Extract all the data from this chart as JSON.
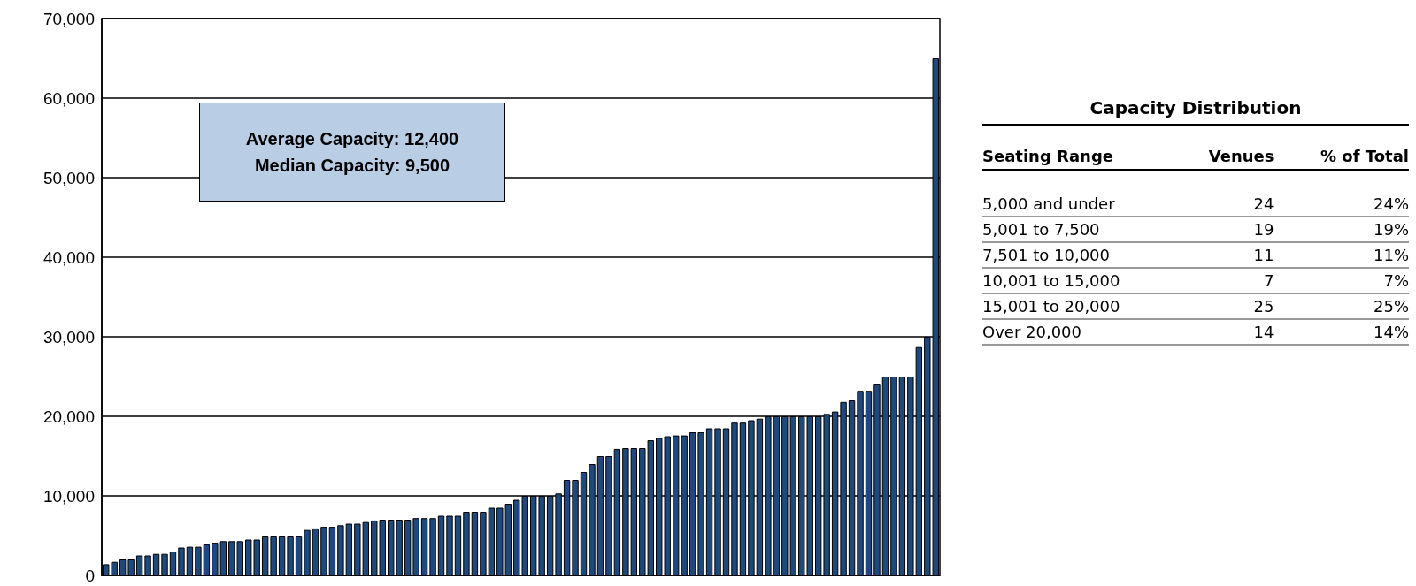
{
  "chart_data": [
    {
      "type": "bar",
      "categories": [
        null,
        null,
        null,
        null,
        null,
        null,
        null,
        null,
        null,
        null,
        null,
        null,
        null,
        null,
        null,
        null,
        null,
        null,
        null,
        null,
        null,
        null,
        null,
        null,
        null,
        null,
        null,
        null,
        null,
        null,
        null,
        null,
        null,
        null,
        null,
        null,
        null,
        null,
        null,
        null,
        null,
        null,
        null,
        null,
        null,
        null,
        null,
        null,
        null,
        null,
        null,
        null,
        null,
        null,
        null,
        null,
        null,
        null,
        null,
        null,
        null,
        null,
        null,
        null,
        null,
        null,
        null,
        null,
        null,
        null,
        null,
        null,
        null,
        null,
        null,
        null,
        null,
        null,
        null,
        null,
        null,
        null,
        null,
        null,
        null,
        null,
        null,
        null,
        null,
        null,
        null,
        null,
        null,
        null,
        null,
        null,
        null,
        null,
        null,
        null
      ],
      "values": [
        1400,
        1700,
        2000,
        2000,
        2500,
        2500,
        2700,
        2700,
        3000,
        3500,
        3600,
        3600,
        3900,
        4100,
        4300,
        4300,
        4300,
        4500,
        4500,
        5000,
        5000,
        5000,
        5000,
        5000,
        5700,
        5900,
        6100,
        6100,
        6300,
        6500,
        6500,
        6700,
        6900,
        7000,
        7000,
        7000,
        7000,
        7200,
        7200,
        7200,
        7500,
        7500,
        7500,
        8000,
        8000,
        8000,
        8500,
        8500,
        9000,
        9500,
        10000,
        10000,
        10000,
        10000,
        10300,
        12000,
        12000,
        13000,
        14000,
        15000,
        15000,
        15900,
        16000,
        16000,
        16000,
        17000,
        17300,
        17500,
        17600,
        17600,
        18000,
        18000,
        18500,
        18500,
        18500,
        19200,
        19200,
        19500,
        19700,
        20000,
        20000,
        20000,
        20000,
        20000,
        20000,
        20000,
        20300,
        20600,
        21800,
        22000,
        23200,
        23200,
        24000,
        25000,
        25000,
        25000,
        25000,
        28700,
        30000,
        65000
      ],
      "color": "#1f497d",
      "ylim": [
        0,
        70000
      ],
      "yticks": [
        0,
        {
          "value": 10000,
          "label": "10,000"
        },
        {
          "value": 20000,
          "label": "20,000"
        },
        {
          "value": 30000,
          "label": "30,000"
        },
        {
          "value": 40000,
          "label": "40,000"
        },
        {
          "value": 50000,
          "label": "50,000"
        },
        {
          "value": 60000,
          "label": "60,000"
        },
        {
          "value": 70000,
          "label": "70,000"
        }
      ],
      "grid": "y",
      "annotations": [
        "Average Capacity: 12,400",
        "Median Capacity: 9,500"
      ]
    },
    {
      "type": "other",
      "title": "Capacity Distribution",
      "annotations": [
        "Seating Range",
        "Venues",
        "% of Total",
        "5,000 and under",
        "24",
        "24%",
        "5,001 to 7,500",
        "19",
        "19%",
        "7,501 to 10,000",
        "11",
        "11%",
        "10,001 to 15,000",
        "7",
        "7%",
        "15,001 to 20,000",
        "25",
        "25%",
        "Over 20,000",
        "14",
        "14%"
      ]
    }
  ]
}
